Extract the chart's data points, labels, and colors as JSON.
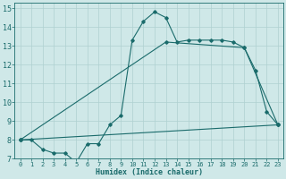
{
  "title": "",
  "xlabel": "Humidex (Indice chaleur)",
  "bg_color": "#cfe8e8",
  "grid_color": "#aed0d0",
  "line_color": "#1a6b6b",
  "xlim": [
    -0.5,
    23.5
  ],
  "ylim": [
    7,
    15.3
  ],
  "xticks": [
    0,
    1,
    2,
    3,
    4,
    5,
    6,
    7,
    8,
    9,
    10,
    11,
    12,
    13,
    14,
    15,
    16,
    17,
    18,
    19,
    20,
    21,
    22,
    23
  ],
  "yticks": [
    7,
    8,
    9,
    10,
    11,
    12,
    13,
    14,
    15
  ],
  "line1_x": [
    0,
    1,
    2,
    3,
    4,
    5,
    6,
    7,
    8,
    9,
    10,
    11,
    12,
    13,
    14,
    15,
    16,
    17,
    18,
    19,
    20,
    21,
    22,
    23
  ],
  "line1_y": [
    8.0,
    8.0,
    7.5,
    7.3,
    7.3,
    6.8,
    7.8,
    7.8,
    8.8,
    9.3,
    13.3,
    14.3,
    14.8,
    14.5,
    13.2,
    13.3,
    13.3,
    13.3,
    13.3,
    13.2,
    12.9,
    11.7,
    9.5,
    8.8
  ],
  "line2_x": [
    0,
    13,
    20,
    23
  ],
  "line2_y": [
    8.0,
    13.2,
    12.9,
    8.8
  ],
  "line3_x": [
    0,
    23
  ],
  "line3_y": [
    8.0,
    8.8
  ]
}
